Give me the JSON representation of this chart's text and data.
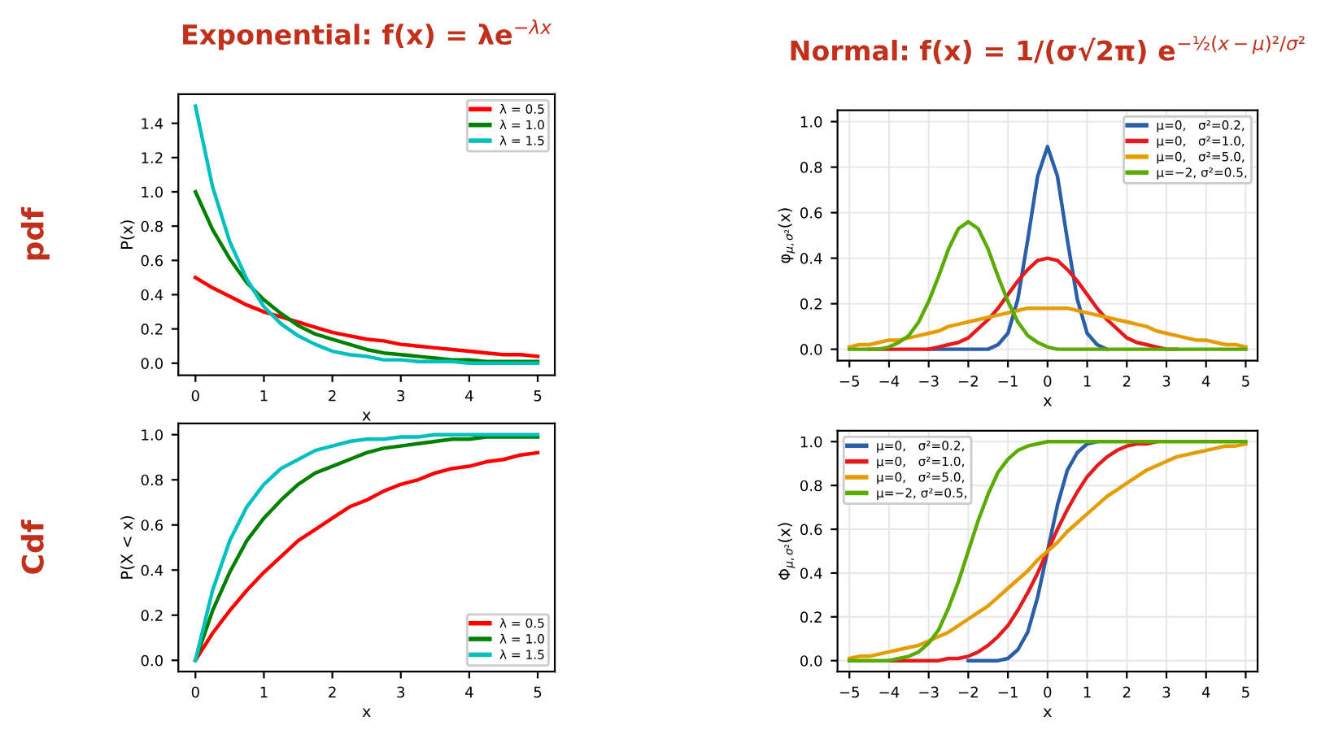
{
  "chart_data": [
    {
      "type": "line",
      "title": "Exponential: f(x) = λe$^{−λx}$",
      "xlabel": "x",
      "ylabel": "P(x)",
      "annotations": [
        "pdf"
      ],
      "x": [
        0,
        0.25,
        0.5,
        0.75,
        1,
        1.25,
        1.5,
        1.75,
        2,
        2.25,
        2.5,
        2.75,
        3,
        3.25,
        3.5,
        3.75,
        4,
        4.25,
        4.5,
        4.75,
        5
      ],
      "series": [
        {
          "name": "λ = 0.5",
          "color": "#ff0000",
          "values": [
            0.5,
            0.44,
            0.39,
            0.34,
            0.3,
            0.27,
            0.24,
            0.21,
            0.18,
            0.16,
            0.14,
            0.13,
            0.11,
            0.1,
            0.09,
            0.08,
            0.07,
            0.06,
            0.05,
            0.05,
            0.04
          ]
        },
        {
          "name": "λ = 1.0",
          "color": "#008000",
          "values": [
            1.0,
            0.78,
            0.61,
            0.47,
            0.37,
            0.29,
            0.22,
            0.17,
            0.14,
            0.11,
            0.08,
            0.06,
            0.05,
            0.04,
            0.03,
            0.02,
            0.02,
            0.01,
            0.01,
            0.01,
            0.01
          ]
        },
        {
          "name": "λ = 1.5",
          "color": "#00bfbf",
          "values": [
            1.5,
            1.03,
            0.71,
            0.49,
            0.33,
            0.23,
            0.16,
            0.11,
            0.07,
            0.05,
            0.04,
            0.02,
            0.02,
            0.01,
            0.01,
            0.01,
            0.0,
            0.0,
            0.0,
            0.0,
            0.0
          ]
        }
      ],
      "xlim": [
        -0.25,
        5.25
      ],
      "xticks": [
        0,
        1,
        2,
        3,
        4,
        5
      ],
      "ylim": [
        -0.07,
        1.57
      ],
      "yticks": [
        {
          "value": 0,
          "label": "0.0"
        },
        {
          "value": 0.2,
          "label": "0.2"
        },
        {
          "value": 0.4,
          "label": "0.4"
        },
        {
          "value": 0.6,
          "label": "0.6"
        },
        {
          "value": 0.8,
          "label": "0.8"
        },
        {
          "value": 1.0,
          "label": "1.0"
        },
        {
          "value": 1.2,
          "label": "1.2"
        },
        {
          "value": 1.4,
          "label": "1.4"
        }
      ],
      "legend": "top right",
      "grid": false
    },
    {
      "type": "line",
      "title": "Normal: f(x) = 1/(σ√2π) e$^{−½(x−μ)²/σ²}$",
      "xlabel": "x",
      "ylabel": "φ$_{μ,σ²}$(x)",
      "x": [
        -5,
        -4.75,
        -4.5,
        -4.25,
        -4,
        -3.75,
        -3.5,
        -3.25,
        -3,
        -2.75,
        -2.5,
        -2.25,
        -2,
        -1.75,
        -1.5,
        -1.25,
        -1,
        -0.75,
        -0.5,
        -0.25,
        0,
        0.25,
        0.5,
        0.75,
        1,
        1.25,
        1.5,
        1.75,
        2,
        2.25,
        2.5,
        2.75,
        3,
        3.25,
        3.5,
        3.75,
        4,
        4.25,
        4.5,
        4.75,
        5
      ],
      "series": [
        {
          "name": "μ=0,   σ²=0.2,",
          "color": "#2a5fa8",
          "values": [
            null,
            null,
            null,
            null,
            null,
            null,
            null,
            null,
            0,
            0,
            0,
            0,
            0,
            0,
            0,
            0.02,
            0.07,
            0.22,
            0.48,
            0.76,
            0.89,
            0.76,
            0.48,
            0.22,
            0.07,
            0.02,
            0,
            null,
            null,
            null,
            null,
            null,
            null,
            null,
            null,
            null,
            null,
            null,
            null,
            null,
            null
          ]
        },
        {
          "name": "μ=0,   σ²=1.0,",
          "color": "#e41a1c",
          "values": [
            null,
            null,
            0,
            0,
            0,
            0,
            0,
            0,
            0,
            0.01,
            0.02,
            0.03,
            0.05,
            0.09,
            0.13,
            0.18,
            0.24,
            0.3,
            0.35,
            0.39,
            0.4,
            0.39,
            0.35,
            0.3,
            0.24,
            0.18,
            0.13,
            0.09,
            0.05,
            0.03,
            0.02,
            0.01,
            0,
            0,
            null,
            null,
            null,
            null,
            null,
            null,
            null
          ]
        },
        {
          "name": "μ=0,   σ²=5.0,",
          "color": "#e59c00",
          "values": [
            0.01,
            0.02,
            0.02,
            0.03,
            0.04,
            0.04,
            0.05,
            0.06,
            0.07,
            0.08,
            0.1,
            0.11,
            0.12,
            0.13,
            0.14,
            0.15,
            0.16,
            0.17,
            0.18,
            0.18,
            0.18,
            0.18,
            0.18,
            0.17,
            0.16,
            0.15,
            0.14,
            0.13,
            0.12,
            0.11,
            0.1,
            0.08,
            0.07,
            0.06,
            0.05,
            0.04,
            0.04,
            0.03,
            0.02,
            0.02,
            0.01
          ]
        },
        {
          "name": "μ=−2, σ²=0.5,",
          "color": "#5aab00",
          "values": [
            0,
            0,
            0,
            0,
            0.01,
            0.03,
            0.06,
            0.12,
            0.21,
            0.32,
            0.44,
            0.53,
            0.56,
            0.53,
            0.44,
            0.32,
            0.21,
            0.12,
            0.06,
            0.03,
            0.01,
            0,
            0,
            0,
            0,
            0,
            0,
            0,
            0,
            0,
            0,
            0,
            0,
            0,
            0,
            0,
            0,
            0,
            0,
            0,
            0
          ]
        }
      ],
      "xlim": [
        -5.3,
        5.3
      ],
      "xticks": [
        {
          "value": -5,
          "label": "−5"
        },
        {
          "value": -4,
          "label": "−4"
        },
        {
          "value": -3,
          "label": "−3"
        },
        {
          "value": -2,
          "label": "−2"
        },
        {
          "value": -1,
          "label": "−1"
        },
        0,
        1,
        2,
        3,
        4,
        5
      ],
      "ylim": [
        -0.05,
        1.05
      ],
      "yticks": [
        {
          "value": 0,
          "label": "0.0"
        },
        {
          "value": 0.2,
          "label": "0.2"
        },
        {
          "value": 0.4,
          "label": "0.4"
        },
        {
          "value": 0.6,
          "label": "0.6"
        },
        {
          "value": 0.8,
          "label": "0.8"
        },
        {
          "value": 1.0,
          "label": "1.0"
        }
      ],
      "legend": "top right",
      "grid": true
    },
    {
      "type": "line",
      "ylabel": "P(X < x)",
      "xlabel": "x",
      "annotations": [
        "Cdf"
      ],
      "x": [
        0,
        0.25,
        0.5,
        0.75,
        1,
        1.25,
        1.5,
        1.75,
        2,
        2.25,
        2.5,
        2.75,
        3,
        3.25,
        3.5,
        3.75,
        4,
        4.25,
        4.5,
        4.75,
        5
      ],
      "series": [
        {
          "name": "λ = 0.5",
          "color": "#ff0000",
          "values": [
            0,
            0.12,
            0.22,
            0.31,
            0.39,
            0.46,
            0.53,
            0.58,
            0.63,
            0.68,
            0.71,
            0.75,
            0.78,
            0.8,
            0.83,
            0.85,
            0.86,
            0.88,
            0.89,
            0.91,
            0.92
          ]
        },
        {
          "name": "λ = 1.0",
          "color": "#008000",
          "values": [
            0,
            0.22,
            0.39,
            0.53,
            0.63,
            0.71,
            0.78,
            0.83,
            0.86,
            0.89,
            0.92,
            0.94,
            0.95,
            0.96,
            0.97,
            0.98,
            0.98,
            0.99,
            0.99,
            0.99,
            0.99
          ]
        },
        {
          "name": "λ = 1.5",
          "color": "#00bfbf",
          "values": [
            0,
            0.31,
            0.53,
            0.68,
            0.78,
            0.85,
            0.89,
            0.93,
            0.95,
            0.97,
            0.98,
            0.98,
            0.99,
            0.99,
            1.0,
            1.0,
            1.0,
            1.0,
            1.0,
            1.0,
            1.0
          ]
        }
      ],
      "xlim": [
        -0.25,
        5.25
      ],
      "xticks": [
        0,
        1,
        2,
        3,
        4,
        5
      ],
      "ylim": [
        -0.05,
        1.05
      ],
      "yticks": [
        {
          "value": 0,
          "label": "0.0"
        },
        {
          "value": 0.2,
          "label": "0.2"
        },
        {
          "value": 0.4,
          "label": "0.4"
        },
        {
          "value": 0.6,
          "label": "0.6"
        },
        {
          "value": 0.8,
          "label": "0.8"
        },
        {
          "value": 1.0,
          "label": "1.0"
        }
      ],
      "legend": "bottom right",
      "grid": false
    },
    {
      "type": "line",
      "xlabel": "x",
      "ylabel": "Φ$_{μ,σ²}$(x)",
      "x": [
        -5,
        -4.75,
        -4.5,
        -4.25,
        -4,
        -3.75,
        -3.5,
        -3.25,
        -3,
        -2.75,
        -2.5,
        -2.25,
        -2,
        -1.75,
        -1.5,
        -1.25,
        -1,
        -0.75,
        -0.5,
        -0.25,
        0,
        0.25,
        0.5,
        0.75,
        1,
        1.25,
        1.5,
        1.75,
        2,
        2.25,
        2.5,
        2.75,
        3,
        3.25,
        3.5,
        3.75,
        4,
        4.25,
        4.5,
        4.75,
        5
      ],
      "series": [
        {
          "name": "μ=0,   σ²=0.2,",
          "color": "#2a5fa8",
          "values": [
            null,
            null,
            null,
            null,
            null,
            null,
            null,
            null,
            null,
            null,
            null,
            null,
            0,
            0,
            0,
            0,
            0.01,
            0.05,
            0.13,
            0.29,
            0.5,
            0.71,
            0.87,
            0.95,
            0.99,
            1,
            null,
            null,
            null,
            null,
            null,
            null,
            null,
            null,
            null,
            null,
            null,
            null,
            null,
            null,
            null
          ]
        },
        {
          "name": "μ=0,   σ²=1.0,",
          "color": "#e41a1c",
          "values": [
            null,
            null,
            null,
            null,
            0,
            0,
            0,
            0,
            0,
            0,
            0.01,
            0.01,
            0.02,
            0.04,
            0.07,
            0.11,
            0.16,
            0.23,
            0.31,
            0.4,
            0.5,
            0.6,
            0.69,
            0.77,
            0.84,
            0.89,
            0.93,
            0.96,
            0.98,
            0.99,
            0.99,
            1,
            null,
            null,
            null,
            null,
            null,
            null,
            null,
            null,
            null
          ]
        },
        {
          "name": "μ=0,   σ²=5.0,",
          "color": "#e59c00",
          "values": [
            0.01,
            0.02,
            0.02,
            0.03,
            0.04,
            0.05,
            0.06,
            0.07,
            0.09,
            0.11,
            0.13,
            0.16,
            0.19,
            0.22,
            0.25,
            0.29,
            0.33,
            0.37,
            0.41,
            0.46,
            0.5,
            0.54,
            0.59,
            0.63,
            0.67,
            0.71,
            0.75,
            0.78,
            0.81,
            0.84,
            0.87,
            0.89,
            0.91,
            0.93,
            0.94,
            0.95,
            0.96,
            0.97,
            0.98,
            0.98,
            0.99
          ]
        },
        {
          "name": "μ=−2, σ²=0.5,",
          "color": "#5aab00",
          "values": [
            0,
            0,
            0,
            0,
            0,
            0.01,
            0.02,
            0.04,
            0.08,
            0.14,
            0.24,
            0.36,
            0.5,
            0.64,
            0.76,
            0.86,
            0.92,
            0.96,
            0.98,
            0.99,
            1,
            1,
            1,
            1,
            1,
            1,
            1,
            1,
            1,
            1,
            1,
            1,
            1,
            1,
            1,
            1,
            1,
            1,
            1,
            1,
            1
          ]
        }
      ],
      "xlim": [
        -5.3,
        5.3
      ],
      "xticks": [
        {
          "value": -5,
          "label": "−5"
        },
        {
          "value": -4,
          "label": "−4"
        },
        {
          "value": -3,
          "label": "−3"
        },
        {
          "value": -2,
          "label": "−2"
        },
        {
          "value": -1,
          "label": "−1"
        },
        0,
        1,
        2,
        3,
        4,
        5
      ],
      "ylim": [
        -0.05,
        1.05
      ],
      "yticks": [
        {
          "value": 0,
          "label": "0.0"
        },
        {
          "value": 0.2,
          "label": "0.2"
        },
        {
          "value": 0.4,
          "label": "0.4"
        },
        {
          "value": 0.6,
          "label": "0.6"
        },
        {
          "value": 0.8,
          "label": "0.8"
        },
        {
          "value": 1.0,
          "label": "1.0"
        }
      ],
      "legend": "top left",
      "grid": true
    }
  ]
}
